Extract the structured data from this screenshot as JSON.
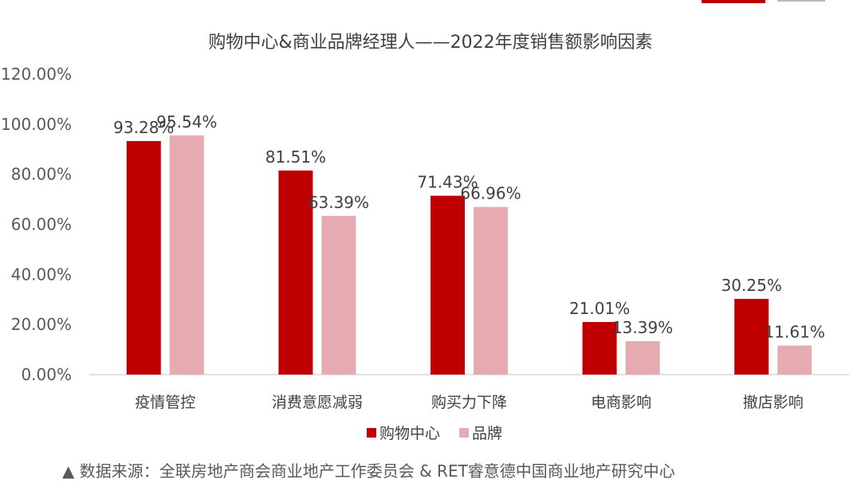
{
  "chart_data": {
    "type": "bar",
    "title": "购物中心&商业品牌经理人——2022年度销售额影响因素",
    "categories": [
      "疫情管控",
      "消费意愿减弱",
      "购买力下降",
      "电商影响",
      "撤店影响"
    ],
    "series": [
      {
        "name": "购物中心",
        "values": [
          93.28,
          81.51,
          71.43,
          21.01,
          30.25
        ],
        "labels": [
          "93.28%",
          "81.51%",
          "71.43%",
          "21.01%",
          "30.25%"
        ],
        "color": "#c00000"
      },
      {
        "name": "品牌",
        "values": [
          95.54,
          63.39,
          66.96,
          13.39,
          11.61
        ],
        "labels": [
          "95.54%",
          "63.39%",
          "66.96%",
          "13.39%",
          "11.61%"
        ],
        "color": "#e6abb0"
      }
    ],
    "yticks": [
      "0.00%",
      "20.00%",
      "40.00%",
      "60.00%",
      "80.00%",
      "100.00%",
      "120.00%"
    ],
    "ylim": [
      0,
      120
    ],
    "grid": false,
    "legend_position": "bottom"
  },
  "source": "▲ 数据来源：全联房地产商会商业地产工作委员会 & RET睿意德中国商业地产研究中心"
}
